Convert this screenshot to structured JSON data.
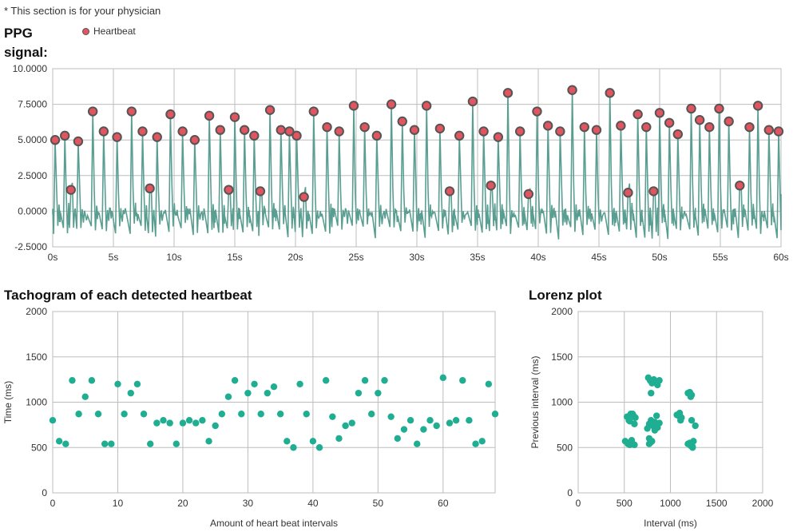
{
  "header": {
    "note": "* This section is for your physician"
  },
  "colors": {
    "signal": "#5a9e92",
    "heartbeat": "#e05560",
    "heartbeat_stroke": "#555555",
    "dots": "#1fae91",
    "grid": "#bdbdbd"
  },
  "chart_data": [
    {
      "id": "ppg",
      "type": "line",
      "title": "PPG signal:",
      "legend": [
        "Heartbeat"
      ],
      "legend_position": "top-left",
      "grid": true,
      "xlim": [
        0,
        60
      ],
      "ylim": [
        -2.5,
        10
      ],
      "x_ticks": [
        0,
        5,
        10,
        15,
        20,
        25,
        30,
        35,
        40,
        45,
        50,
        55,
        60
      ],
      "x_tick_labels": [
        "0s",
        "5s",
        "10s",
        "15s",
        "20s",
        "25s",
        "30s",
        "35s",
        "40s",
        "45s",
        "50s",
        "55s",
        "60s"
      ],
      "y_ticks": [
        -2.5,
        0,
        2.5,
        5,
        7.5,
        10
      ],
      "y_tick_labels": [
        "-2.5000",
        "0.0000",
        "2.5000",
        "5.0000",
        "7.5000",
        "10.0000"
      ],
      "series": [
        {
          "name": "Heartbeat",
          "x": [
            0.2,
            1.0,
            1.5,
            2.1,
            3.3,
            4.2,
            5.3,
            6.5,
            7.4,
            8.0,
            8.6,
            9.7,
            10.7,
            11.7,
            12.9,
            13.8,
            14.5,
            15.0,
            15.8,
            16.6,
            17.1,
            17.9,
            18.8,
            19.5,
            20.1,
            20.7,
            21.5,
            22.6,
            23.6,
            24.8,
            25.7,
            26.7,
            27.9,
            28.8,
            29.8,
            30.8,
            31.9,
            32.7,
            33.5,
            34.6,
            35.5,
            36.1,
            36.7,
            37.5,
            38.5,
            39.2,
            39.9,
            40.8,
            41.8,
            42.8,
            43.8,
            44.8,
            45.9,
            46.8,
            47.4,
            48.2,
            48.9,
            49.5,
            50.0,
            50.8,
            51.5,
            52.6,
            53.3,
            54.1,
            54.9,
            55.7,
            56.6,
            57.4,
            58.1,
            59.0,
            59.8
          ],
          "y": [
            5.0,
            5.3,
            1.5,
            4.9,
            7.0,
            5.6,
            5.2,
            7.0,
            5.6,
            1.6,
            5.2,
            6.8,
            5.6,
            5.0,
            6.7,
            5.7,
            1.5,
            6.6,
            5.7,
            5.3,
            1.4,
            7.1,
            5.7,
            5.6,
            5.3,
            1.0,
            7.0,
            5.9,
            5.6,
            7.4,
            5.9,
            5.3,
            7.5,
            6.3,
            5.7,
            7.4,
            5.8,
            1.4,
            5.3,
            7.7,
            5.6,
            1.8,
            5.2,
            8.3,
            5.6,
            1.2,
            7.0,
            6.0,
            5.6,
            8.5,
            5.9,
            5.7,
            8.3,
            6.0,
            1.3,
            6.8,
            5.9,
            1.4,
            6.9,
            6.2,
            5.4,
            7.2,
            6.4,
            5.9,
            7.2,
            6.3,
            1.8,
            5.9,
            7.4,
            5.7,
            5.6
          ]
        }
      ]
    },
    {
      "id": "tachogram",
      "type": "scatter",
      "title": "Tachogram of each detected heartbeat",
      "xlabel": "Amount of heart beat intervals",
      "ylabel": "Time (ms)",
      "xlim": [
        0,
        68
      ],
      "ylim": [
        0,
        2000
      ],
      "x_ticks": [
        0,
        10,
        20,
        30,
        40,
        50,
        60
      ],
      "y_ticks": [
        0,
        500,
        1000,
        1500,
        2000
      ],
      "grid": true,
      "x": [
        0,
        1,
        2,
        3,
        4,
        5,
        6,
        7,
        8,
        9,
        10,
        11,
        12,
        13,
        14,
        15,
        16,
        17,
        18,
        19,
        20,
        21,
        22,
        23,
        24,
        25,
        26,
        27,
        28,
        29,
        30,
        31,
        32,
        33,
        34,
        35,
        36,
        37,
        38,
        39,
        40,
        41,
        42,
        43,
        44,
        45,
        46,
        47,
        48,
        49,
        50,
        51,
        52,
        53,
        54,
        55,
        56,
        57,
        58,
        59,
        60,
        61,
        62,
        63,
        64,
        65,
        66,
        67,
        68
      ],
      "y": [
        800,
        570,
        540,
        1240,
        870,
        1060,
        1240,
        870,
        540,
        540,
        1200,
        870,
        1100,
        1200,
        870,
        540,
        770,
        800,
        770,
        540,
        770,
        800,
        770,
        800,
        570,
        740,
        870,
        1060,
        1240,
        870,
        1100,
        1200,
        870,
        1100,
        1170,
        870,
        570,
        500,
        1200,
        870,
        570,
        500,
        1240,
        840,
        600,
        740,
        770,
        1100,
        1240,
        870,
        1100,
        1240,
        840,
        600,
        700,
        800,
        540,
        700,
        800,
        740,
        1270,
        770,
        800,
        1240,
        800,
        540,
        570,
        1200,
        870
      ]
    },
    {
      "id": "lorenz",
      "type": "scatter",
      "title": "Lorenz plot",
      "xlabel": "Interval (ms)",
      "ylabel": "Previous interval (ms)",
      "xlim": [
        0,
        2000
      ],
      "ylim": [
        0,
        2000
      ],
      "x_ticks": [
        0,
        500,
        1000,
        1500,
        2000
      ],
      "y_ticks": [
        0,
        500,
        1000,
        1500,
        2000
      ],
      "grid": true,
      "x": [
        510,
        540,
        560,
        580,
        610,
        530,
        570,
        600,
        550,
        620,
        590,
        540,
        580,
        610,
        560,
        760,
        780,
        800,
        820,
        840,
        860,
        790,
        770,
        810,
        830,
        750,
        770,
        800,
        770,
        790,
        830,
        860,
        880,
        790,
        850,
        880,
        1070,
        1100,
        1120,
        1090,
        1110,
        1190,
        1210,
        1230,
        1220,
        1240,
        1190,
        1220,
        1250,
        1210,
        1240,
        1230,
        1270
      ],
      "y": [
        570,
        550,
        530,
        560,
        530,
        840,
        870,
        850,
        800,
        830,
        870,
        540,
        580,
        760,
        790,
        1270,
        1240,
        1210,
        1250,
        1220,
        1190,
        800,
        760,
        740,
        780,
        710,
        540,
        570,
        600,
        560,
        690,
        720,
        770,
        1100,
        850,
        1240,
        860,
        880,
        830,
        850,
        800,
        1100,
        1110,
        1080,
        1060,
        500,
        540,
        520,
        570,
        550,
        510,
        800,
        740
      ]
    }
  ]
}
